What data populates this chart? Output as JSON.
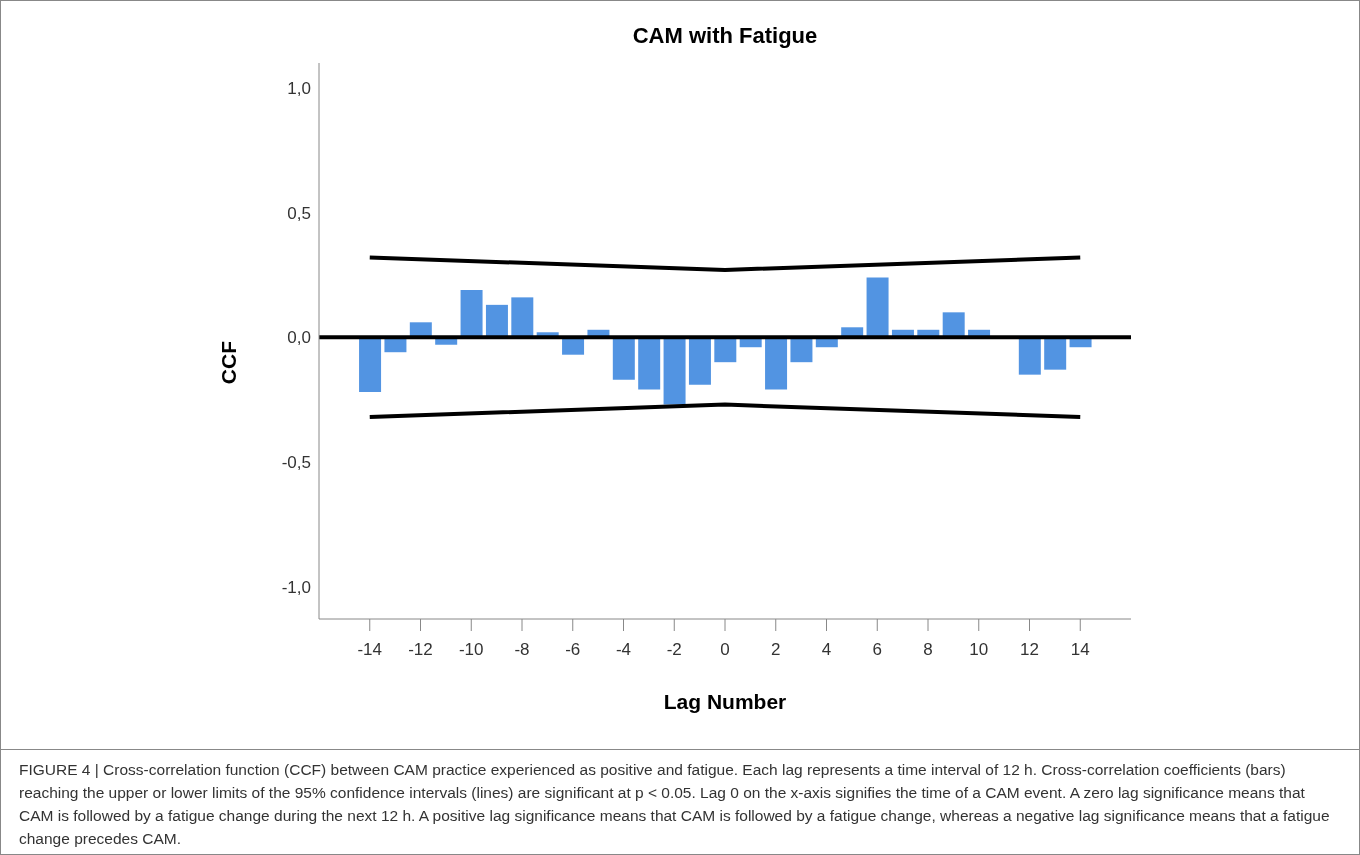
{
  "chart_data": {
    "type": "bar",
    "title": "CAM with Fatigue",
    "xlabel": "Lag Number",
    "ylabel": "CCF",
    "xlim": [
      -16,
      16
    ],
    "xticks": [
      -14,
      -12,
      -10,
      -8,
      -6,
      -4,
      -2,
      0,
      2,
      4,
      6,
      8,
      10,
      12,
      14
    ],
    "ylim": [
      -1.13,
      1.1
    ],
    "yticks": [
      {
        "value": -1,
        "label": "-1,0"
      },
      {
        "value": -0.5,
        "label": "-0,5"
      },
      {
        "value": 0,
        "label": "0,0"
      },
      {
        "value": 0.5,
        "label": "0,5"
      },
      {
        "value": 1,
        "label": "1,0"
      }
    ],
    "grid": false,
    "legend": false,
    "series": [
      {
        "color": "#5294e2",
        "x": [
          -14,
          -13,
          -12,
          -11,
          -10,
          -9,
          -8,
          -7,
          -6,
          -5,
          -4,
          -3,
          -2,
          -1,
          0,
          1,
          2,
          3,
          4,
          5,
          6,
          7,
          8,
          9,
          10,
          11,
          12,
          13,
          14
        ],
        "values": [
          -0.22,
          -0.06,
          0.06,
          -0.03,
          0.19,
          0.13,
          0.16,
          0.02,
          -0.07,
          0.03,
          -0.17,
          -0.21,
          -0.27,
          -0.19,
          -0.1,
          -0.04,
          -0.21,
          -0.1,
          -0.04,
          0.04,
          0.24,
          0.03,
          0.03,
          0.1,
          0.03,
          null,
          -0.15,
          -0.13,
          -0.04
        ]
      },
      {
        "type": "line",
        "color": "#000000",
        "x": [
          -14,
          0,
          14
        ],
        "values": [
          0.32,
          0.27,
          0.32
        ]
      },
      {
        "type": "line",
        "color": "#000000",
        "x": [
          -14,
          0,
          14
        ],
        "values": [
          -0.32,
          -0.27,
          -0.32
        ]
      }
    ],
    "ref_lines": [
      {
        "axis": "y",
        "value": 0,
        "color": "#000000"
      }
    ],
    "annotations": [
      "FIGURE 4 | Cross-correlation function (CCF) between CAM practice experienced as positive and fatigue. Each lag represents a time interval of 12 h. Cross-correlation coefficients (bars) reaching the upper or lower limits of the 95% confidence intervals (lines) are significant at p < 0.05. Lag 0 on the x-axis signifies the time of a CAM event. A zero lag significance means that CAM is followed by a fatigue change during the next 12 h. A positive lag significance means that CAM is followed by a fatigue change, whereas a negative lag significance means that a fatigue change precedes CAM."
    ]
  }
}
